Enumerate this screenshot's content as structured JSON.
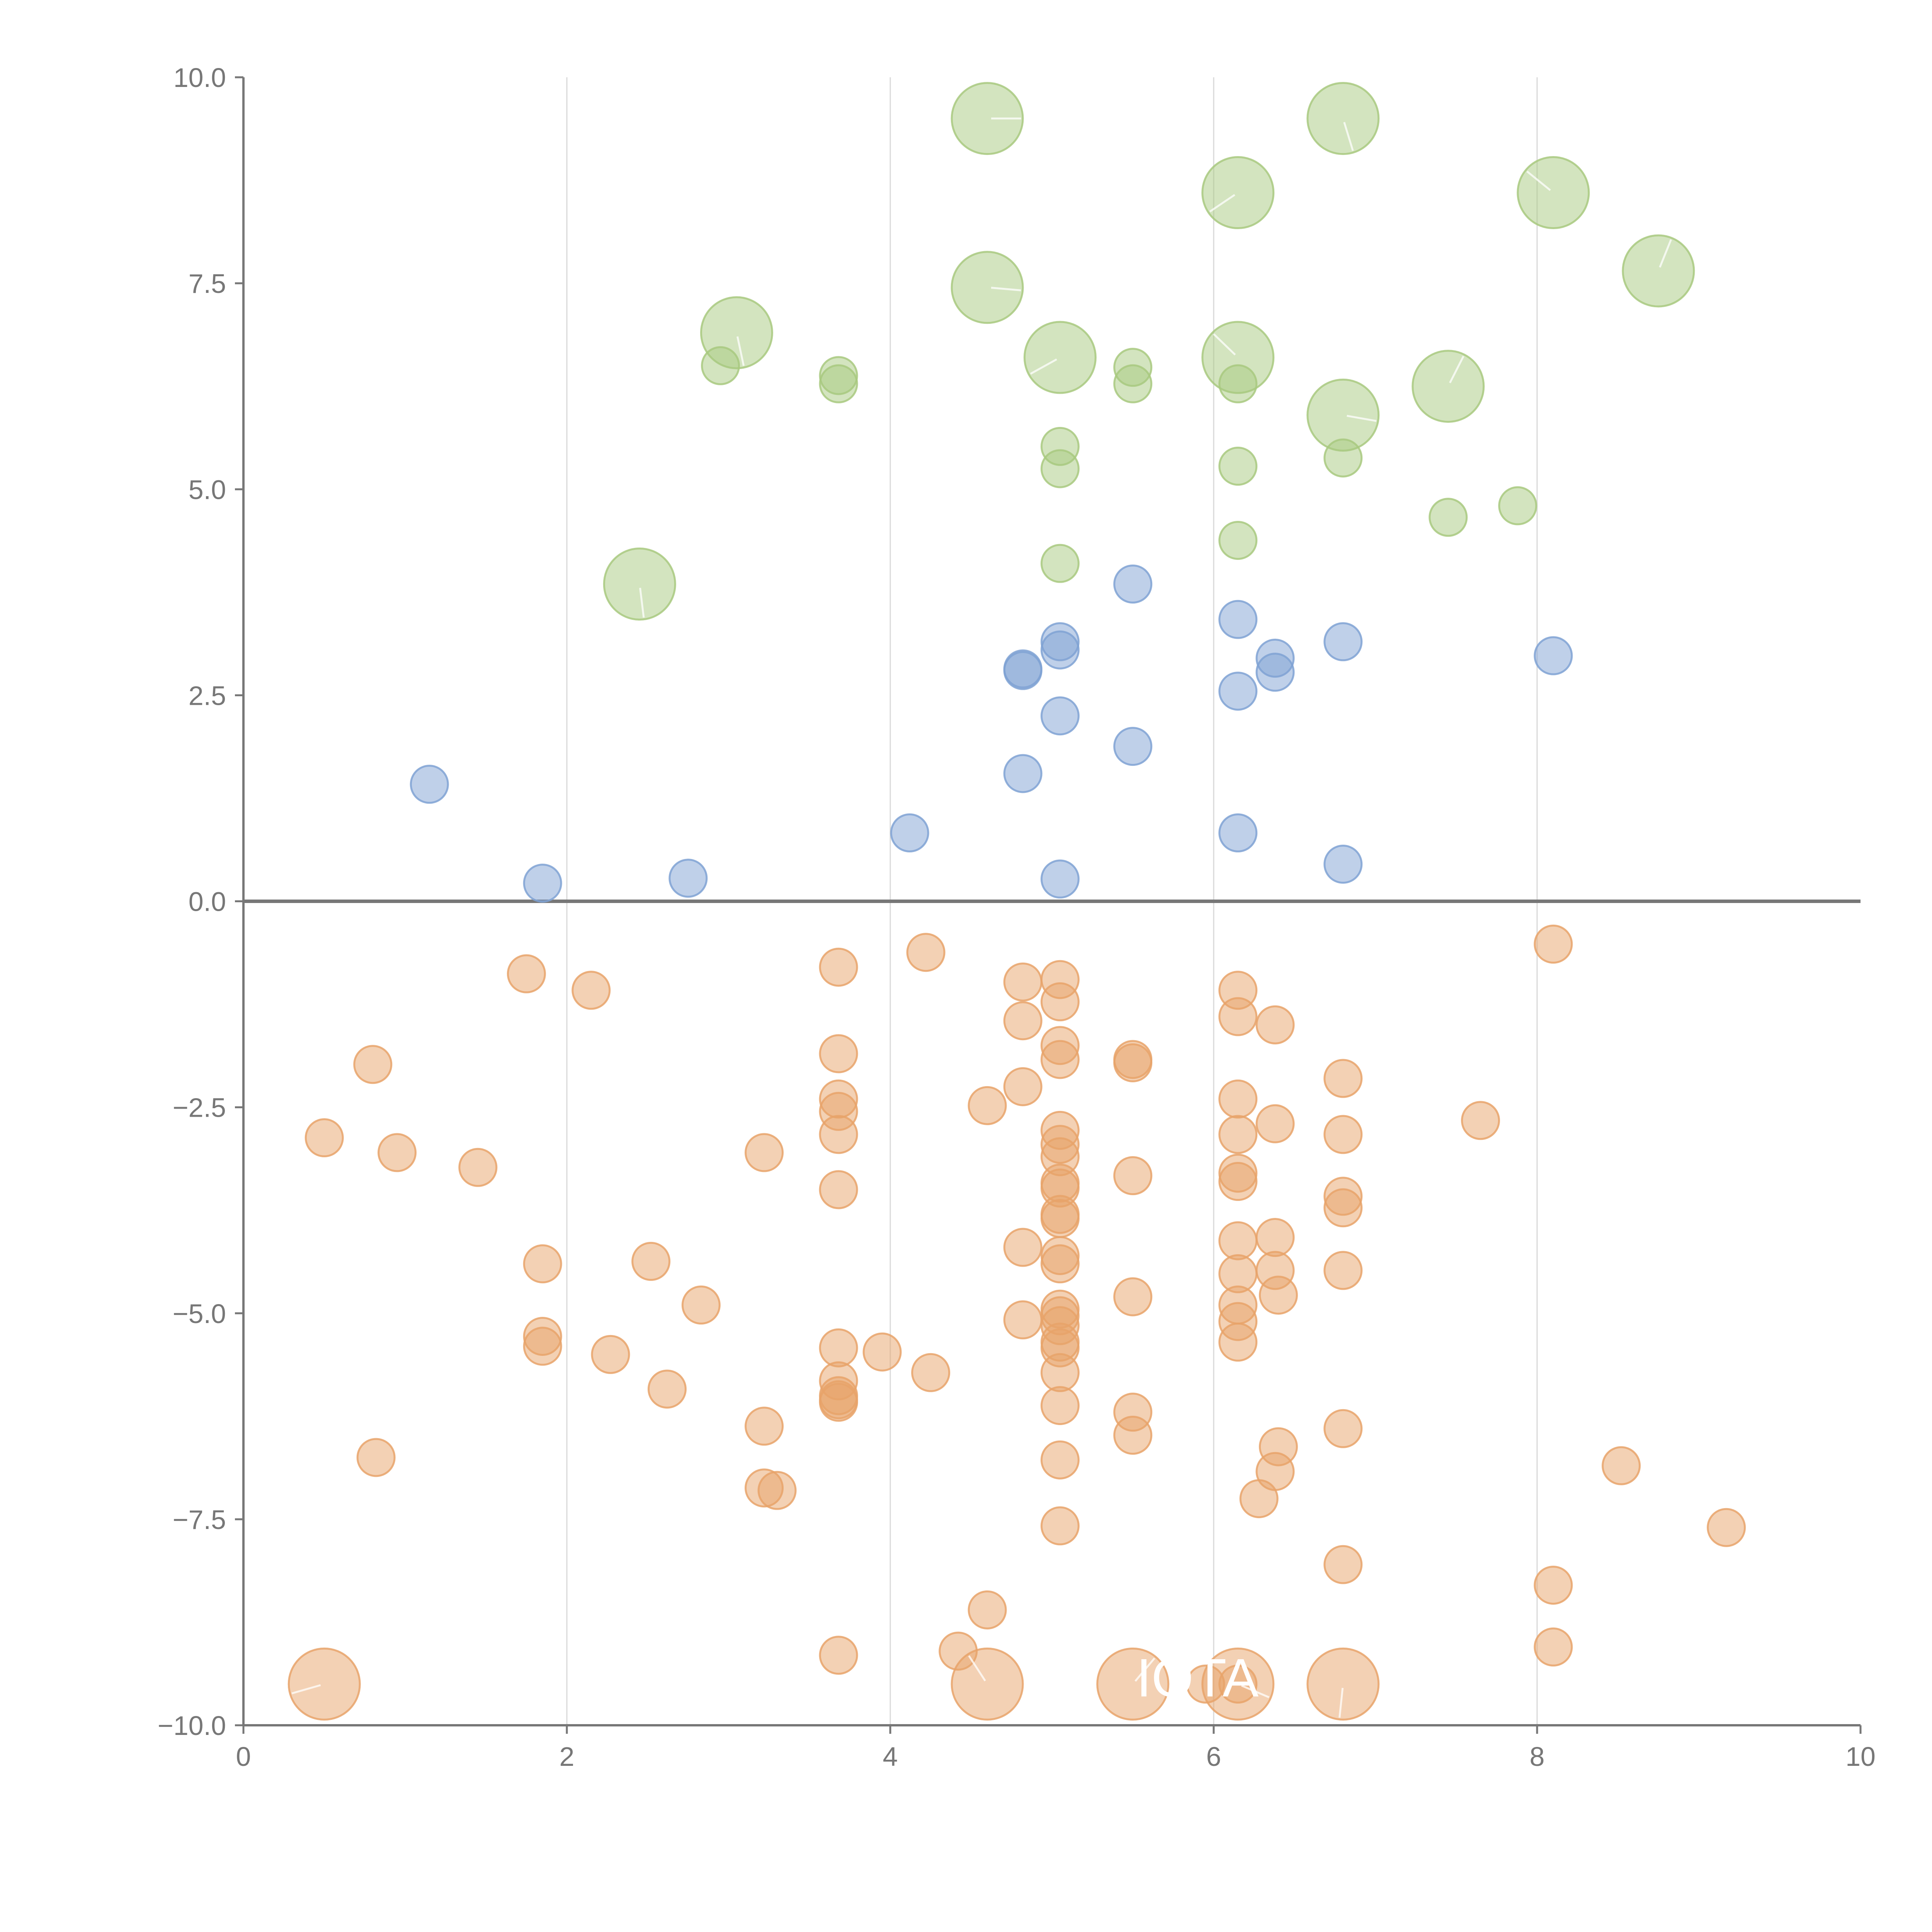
{
  "chart_data": {
    "type": "scatter",
    "title": "",
    "xlabel": "",
    "ylabel": "",
    "xlim": [
      0,
      10
    ],
    "ylim": [
      -10,
      10
    ],
    "grid": "vertical",
    "x_ticks": [
      "0",
      "2",
      "4",
      "6",
      "8",
      "10"
    ],
    "y_ticks": [
      "−10.0",
      "−7.5",
      "−5.0",
      "−2.5",
      "0.0",
      "2.5",
      "5.0",
      "7.5",
      "10.0"
    ],
    "colors": {
      "green": "#a8c97f",
      "blue": "#7fa2d3",
      "orange": "#e8a36a",
      "axis": "#777777",
      "grid": "#d9d9d9"
    },
    "annotations": [
      {
        "text": "IOTA",
        "x": 5.9,
        "y": -9.65
      }
    ],
    "series": [
      {
        "name": "green-large",
        "color": "green",
        "size": "large",
        "points": [
          [
            4.6,
            9.5
          ],
          [
            6.8,
            9.5
          ],
          [
            6.15,
            8.6
          ],
          [
            8.1,
            8.6
          ],
          [
            8.75,
            7.65
          ],
          [
            4.6,
            7.45
          ],
          [
            3.05,
            6.9
          ],
          [
            5.05,
            6.6
          ],
          [
            6.15,
            6.6
          ],
          [
            7.45,
            6.25
          ],
          [
            6.8,
            5.9
          ],
          [
            2.45,
            3.85
          ]
        ]
      },
      {
        "name": "green-small",
        "color": "green",
        "size": "small",
        "points": [
          [
            2.95,
            6.5
          ],
          [
            3.68,
            6.38
          ],
          [
            3.68,
            6.28
          ],
          [
            5.5,
            6.48
          ],
          [
            5.5,
            6.28
          ],
          [
            6.15,
            6.28
          ],
          [
            5.05,
            5.52
          ],
          [
            5.05,
            5.25
          ],
          [
            6.8,
            5.38
          ],
          [
            6.15,
            5.28
          ],
          [
            7.45,
            4.66
          ],
          [
            7.88,
            4.8
          ],
          [
            6.15,
            4.38
          ],
          [
            5.05,
            4.1
          ]
        ]
      },
      {
        "name": "blue",
        "color": "blue",
        "size": "small",
        "points": [
          [
            5.5,
            3.85
          ],
          [
            6.15,
            3.42
          ],
          [
            5.05,
            3.15
          ],
          [
            5.05,
            3.05
          ],
          [
            6.38,
            2.95
          ],
          [
            6.38,
            2.78
          ],
          [
            4.82,
            2.82
          ],
          [
            4.82,
            2.8
          ],
          [
            6.8,
            3.15
          ],
          [
            8.1,
            2.98
          ],
          [
            6.15,
            2.55
          ],
          [
            5.05,
            2.25
          ],
          [
            5.5,
            1.88
          ],
          [
            4.82,
            1.55
          ],
          [
            1.15,
            1.42
          ],
          [
            4.12,
            0.83
          ],
          [
            6.15,
            0.83
          ],
          [
            6.8,
            0.45
          ],
          [
            2.75,
            0.28
          ],
          [
            5.05,
            0.27
          ],
          [
            1.85,
            0.22
          ]
        ]
      },
      {
        "name": "orange-small",
        "color": "orange",
        "size": "small",
        "points": [
          [
            8.1,
            -0.52
          ],
          [
            4.22,
            -0.62
          ],
          [
            3.68,
            -0.8
          ],
          [
            1.75,
            -0.88
          ],
          [
            4.82,
            -0.98
          ],
          [
            5.05,
            -0.95
          ],
          [
            2.15,
            -1.08
          ],
          [
            6.15,
            -1.08
          ],
          [
            5.05,
            -1.22
          ],
          [
            6.15,
            -1.4
          ],
          [
            4.82,
            -1.45
          ],
          [
            6.38,
            -1.5
          ],
          [
            5.05,
            -1.75
          ],
          [
            3.68,
            -1.85
          ],
          [
            5.05,
            -1.92
          ],
          [
            5.5,
            -1.92
          ],
          [
            5.5,
            -1.96
          ],
          [
            0.8,
            -1.98
          ],
          [
            6.8,
            -2.15
          ],
          [
            4.82,
            -2.25
          ],
          [
            3.68,
            -2.4
          ],
          [
            6.15,
            -2.4
          ],
          [
            4.6,
            -2.48
          ],
          [
            3.68,
            -2.55
          ],
          [
            7.65,
            -2.66
          ],
          [
            6.38,
            -2.7
          ],
          [
            5.05,
            -2.78
          ],
          [
            3.68,
            -2.83
          ],
          [
            6.15,
            -2.83
          ],
          [
            6.8,
            -2.83
          ],
          [
            0.5,
            -2.87
          ],
          [
            5.05,
            -2.95
          ],
          [
            3.22,
            -3.05
          ],
          [
            0.95,
            -3.05
          ],
          [
            5.05,
            -3.1
          ],
          [
            1.45,
            -3.23
          ],
          [
            6.15,
            -3.3
          ],
          [
            5.5,
            -3.33
          ],
          [
            5.05,
            -3.42
          ],
          [
            6.15,
            -3.4
          ],
          [
            5.05,
            -3.48
          ],
          [
            3.68,
            -3.5
          ],
          [
            6.8,
            -3.58
          ],
          [
            6.8,
            -3.72
          ],
          [
            5.05,
            -3.8
          ],
          [
            5.05,
            -3.85
          ],
          [
            6.38,
            -4.08
          ],
          [
            6.15,
            -4.12
          ],
          [
            4.82,
            -4.2
          ],
          [
            5.05,
            -4.3
          ],
          [
            1.85,
            -4.4
          ],
          [
            2.52,
            -4.37
          ],
          [
            5.05,
            -4.4
          ],
          [
            6.38,
            -4.48
          ],
          [
            6.8,
            -4.48
          ],
          [
            6.15,
            -4.52
          ],
          [
            6.4,
            -4.78
          ],
          [
            5.5,
            -4.8
          ],
          [
            2.83,
            -4.9
          ],
          [
            6.15,
            -4.9
          ],
          [
            5.05,
            -4.95
          ],
          [
            5.05,
            -5.03
          ],
          [
            4.82,
            -5.08
          ],
          [
            6.15,
            -5.1
          ],
          [
            5.05,
            -5.15
          ],
          [
            1.85,
            -5.28
          ],
          [
            5.05,
            -5.35
          ],
          [
            6.15,
            -5.35
          ],
          [
            1.85,
            -5.4
          ],
          [
            3.68,
            -5.42
          ],
          [
            5.05,
            -5.42
          ],
          [
            3.95,
            -5.47
          ],
          [
            2.27,
            -5.5
          ],
          [
            4.25,
            -5.72
          ],
          [
            5.05,
            -5.72
          ],
          [
            3.68,
            -5.82
          ],
          [
            2.62,
            -5.92
          ],
          [
            3.68,
            -6.0
          ],
          [
            3.68,
            -6.05
          ],
          [
            3.68,
            -6.08
          ],
          [
            5.05,
            -6.12
          ],
          [
            5.5,
            -6.2
          ],
          [
            3.22,
            -6.37
          ],
          [
            6.8,
            -6.4
          ],
          [
            5.5,
            -6.48
          ],
          [
            6.4,
            -6.62
          ],
          [
            0.82,
            -6.75
          ],
          [
            5.05,
            -6.78
          ],
          [
            8.52,
            -6.85
          ],
          [
            6.38,
            -6.92
          ],
          [
            3.22,
            -7.12
          ],
          [
            3.3,
            -7.15
          ],
          [
            6.28,
            -7.25
          ],
          [
            5.05,
            -7.58
          ],
          [
            9.17,
            -7.6
          ],
          [
            6.8,
            -8.05
          ],
          [
            8.1,
            -8.3
          ],
          [
            4.6,
            -8.6
          ],
          [
            8.1,
            -9.05
          ],
          [
            4.42,
            -9.1
          ],
          [
            3.68,
            -9.15
          ],
          [
            6.15,
            -9.5
          ],
          [
            5.95,
            -9.5
          ]
        ]
      },
      {
        "name": "orange-large",
        "color": "orange",
        "size": "large",
        "points": [
          [
            0.5,
            -9.5
          ],
          [
            4.6,
            -9.5
          ],
          [
            5.5,
            -9.5
          ],
          [
            6.15,
            -9.5
          ],
          [
            6.8,
            -9.5
          ]
        ]
      }
    ]
  }
}
